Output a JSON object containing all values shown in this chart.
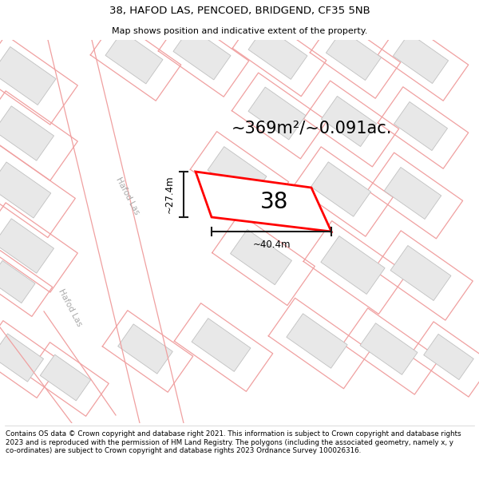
{
  "title_line1": "38, HAFOD LAS, PENCOED, BRIDGEND, CF35 5NB",
  "title_line2": "Map shows position and indicative extent of the property.",
  "area_text": "~369m²/~0.091ac.",
  "property_number": "38",
  "dim_width": "~40.4m",
  "dim_height": "~27.4m",
  "street_label": "Hafod Las",
  "copyright_text": "Contains OS data © Crown copyright and database right 2021. This information is subject to Crown copyright and database rights 2023 and is reproduced with the permission of HM Land Registry. The polygons (including the associated geometry, namely x, y co-ordinates) are subject to Crown copyright and database rights 2023 Ordnance Survey 100026316.",
  "bg_color": "#ffffff",
  "map_bg": "#ffffff",
  "building_fill": "#e8e8e8",
  "building_edge": "#c0c0c0",
  "parcel_line": "#f0a0a0",
  "property_color": "#ff0000",
  "dim_line_color": "#1a1a1a",
  "title_color": "#000000",
  "street_label_color": "#aaaaaa"
}
